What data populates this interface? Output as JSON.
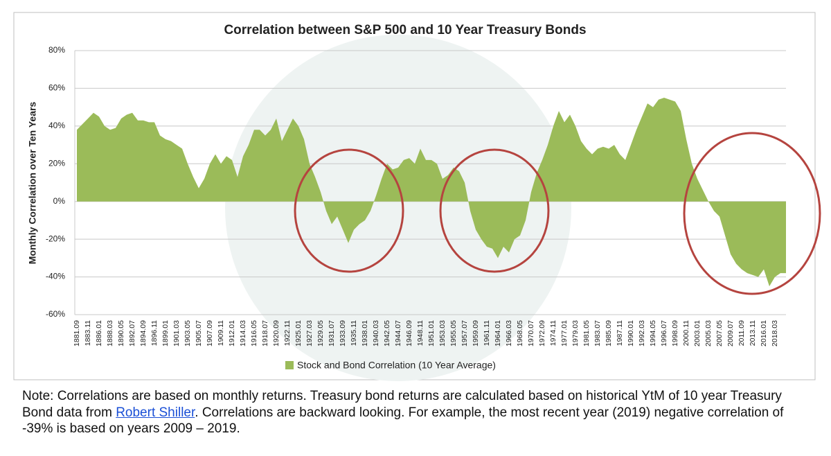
{
  "chart_data": {
    "type": "area",
    "title": "Correlation between S&P 500 and 10 Year Treasury Bonds",
    "ylabel": "Monthly Correlation over Ten Years",
    "categories": [
      "1881.09",
      null,
      "1883.11",
      null,
      "1886.01",
      null,
      "1888.03",
      null,
      "1890.05",
      null,
      "1892.07",
      null,
      "1894.09",
      null,
      "1896.11",
      null,
      "1899.01",
      null,
      "1901.03",
      null,
      "1903.05",
      null,
      "1905.07",
      null,
      "1907.09",
      null,
      "1909.11",
      null,
      "1912.01",
      null,
      "1914.03",
      null,
      "1916.05",
      null,
      "1918.07",
      null,
      "1920.09",
      null,
      "1922.11",
      null,
      "1925.01",
      null,
      "1927.03",
      null,
      "1929.05",
      null,
      "1931.07",
      null,
      "1933.09",
      null,
      "1935.11",
      null,
      "1938.01",
      null,
      "1940.03",
      null,
      "1942.05",
      null,
      "1944.07",
      null,
      "1946.09",
      null,
      "1948.11",
      null,
      "1951.01",
      null,
      "1953.03",
      null,
      "1955.05",
      null,
      "1957.07",
      null,
      "1959.09",
      null,
      "1961.11",
      null,
      "1964.01",
      null,
      "1966.03",
      null,
      "1968.05",
      null,
      "1970.07",
      null,
      "1972.09",
      null,
      "1974.11",
      null,
      "1977.01",
      null,
      "1979.03",
      null,
      "1981.05",
      null,
      "1983.07",
      null,
      "1985.09",
      null,
      "1987.11",
      null,
      "1990.01",
      null,
      "1992.03",
      null,
      "1994.05",
      null,
      "1996.07",
      null,
      "1998.09",
      null,
      "2000.11",
      null,
      "2003.01",
      null,
      "2005.03",
      null,
      "2007.05",
      null,
      "2009.07",
      null,
      "2011.09",
      null,
      "2013.11",
      null,
      "2016.01",
      null,
      "2018.03",
      null,
      null
    ],
    "series": [
      {
        "name": "Stock and Bond Correlation (10 Year Average)",
        "color": "#9bbb59",
        "values": [
          38,
          41,
          44,
          47,
          45,
          40,
          38,
          39,
          44,
          46,
          47,
          43,
          43,
          42,
          42,
          35,
          33,
          32,
          30,
          28,
          20,
          13,
          7,
          12,
          20,
          25,
          20,
          24,
          22,
          13,
          24,
          30,
          38,
          38,
          35,
          38,
          44,
          32,
          38,
          44,
          40,
          33,
          20,
          13,
          5,
          -5,
          -12,
          -8,
          -15,
          -22,
          -15,
          -12,
          -10,
          -5,
          3,
          12,
          20,
          17,
          18,
          22,
          23,
          20,
          28,
          22,
          22,
          20,
          12,
          14,
          18,
          16,
          10,
          -5,
          -15,
          -20,
          -24,
          -25,
          -30,
          -24,
          -27,
          -20,
          -18,
          -10,
          5,
          15,
          22,
          30,
          40,
          48,
          42,
          46,
          40,
          32,
          28,
          25,
          28,
          29,
          28,
          30,
          25,
          22,
          30,
          38,
          45,
          52,
          50,
          54,
          55,
          54,
          53,
          48,
          33,
          20,
          12,
          6,
          0,
          -5,
          -8,
          -18,
          -28,
          -33,
          -36,
          -38,
          -39,
          -40,
          -36,
          -45,
          -40,
          -38,
          -38
        ]
      }
    ],
    "ylim": [
      -60,
      80
    ],
    "yticks": [
      {
        "value": -60,
        "label": "-60%"
      },
      {
        "value": -40,
        "label": "-40%"
      },
      {
        "value": -20,
        "label": "-20%"
      },
      {
        "value": 0,
        "label": "0%"
      },
      {
        "value": 20,
        "label": "20%"
      },
      {
        "value": 40,
        "label": "40%"
      },
      {
        "value": 60,
        "label": "60%"
      },
      {
        "value": 80,
        "label": "80%"
      }
    ],
    "grid": true,
    "legend": "bottom"
  },
  "note": {
    "before": "Note: Correlations are based on monthly returns. Treasury bond returns are calculated based on historical YtM of 10 year Treasury Bond data from ",
    "link": "Robert Shiller",
    "after": ". Correlations are backward looking. For example, the most recent year (2019) negative correlation of -39% is based on years 2009 – 2019."
  }
}
